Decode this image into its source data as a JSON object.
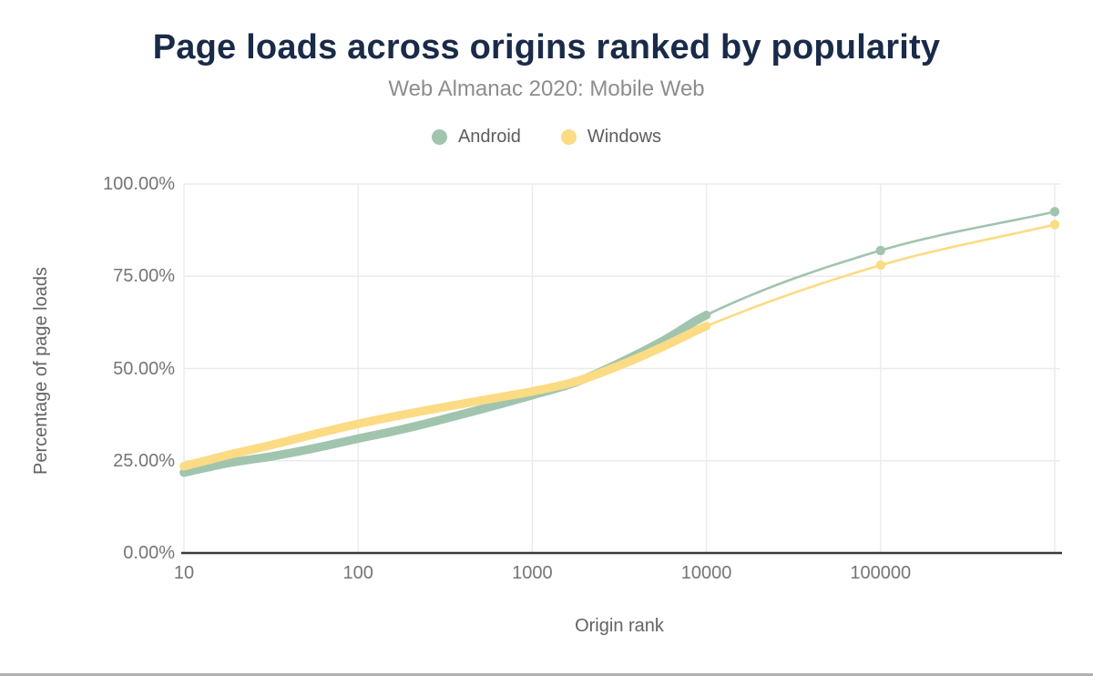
{
  "chart_data": {
    "type": "line",
    "title": "Page loads across origins ranked by popularity",
    "subtitle": "Web Almanac 2020: Mobile Web",
    "xlabel": "Origin rank",
    "ylabel": "Percentage of page loads",
    "x_scale": "log",
    "xlim": [
      10,
      1000000
    ],
    "ylim": [
      0,
      100
    ],
    "grid": true,
    "legend_position": "top",
    "x_ticks": [
      {
        "rank": 10,
        "label": "10"
      },
      {
        "rank": 100,
        "label": "100"
      },
      {
        "rank": 1000,
        "label": "1000"
      },
      {
        "rank": 10000,
        "label": "10000"
      },
      {
        "rank": 100000,
        "label": "100000"
      }
    ],
    "y_ticks": [
      {
        "value": 0,
        "label": "0.00%"
      },
      {
        "value": 25,
        "label": "25.00%"
      },
      {
        "value": 50,
        "label": "50.00%"
      },
      {
        "value": 75,
        "label": "75.00%"
      },
      {
        "value": 100,
        "label": "100.00%"
      }
    ],
    "series": [
      {
        "name": "Android",
        "color": "#a1c4ae",
        "unit": "%",
        "dense_markers_to_rank": 10000,
        "points": [
          [
            10,
            21.8
          ],
          [
            13,
            23.0
          ],
          [
            18,
            24.4
          ],
          [
            32,
            26.2
          ],
          [
            56,
            28.4
          ],
          [
            100,
            31.0
          ],
          [
            178,
            33.5
          ],
          [
            316,
            36.4
          ],
          [
            562,
            39.5
          ],
          [
            1000,
            42.8
          ],
          [
            1778,
            46.3
          ],
          [
            3162,
            51.5
          ],
          [
            5623,
            57.5
          ],
          [
            10000,
            64.5
          ],
          [
            100000,
            82.0
          ],
          [
            1000000,
            92.5
          ]
        ]
      },
      {
        "name": "Windows",
        "color": "#fbdb83",
        "unit": "%",
        "dense_markers_to_rank": 10000,
        "points": [
          [
            10,
            23.5
          ],
          [
            13,
            24.9
          ],
          [
            18,
            26.6
          ],
          [
            32,
            29.3
          ],
          [
            56,
            32.2
          ],
          [
            100,
            35.0
          ],
          [
            178,
            37.4
          ],
          [
            316,
            39.6
          ],
          [
            562,
            41.7
          ],
          [
            1000,
            43.8
          ],
          [
            1778,
            46.5
          ],
          [
            3162,
            50.8
          ],
          [
            5623,
            55.9
          ],
          [
            10000,
            61.5
          ],
          [
            100000,
            78.0
          ],
          [
            1000000,
            89.0
          ]
        ]
      }
    ]
  },
  "colors": {
    "title": "#1a2b49",
    "subtitle": "#8d8d8d",
    "tick_label": "#757575",
    "axis_title": "#636363",
    "legend_label": "#5c5c5c",
    "axis_line": "#3a3a3a",
    "gridline": "#ebebeb",
    "page_edge": "#b1b1b1"
  }
}
